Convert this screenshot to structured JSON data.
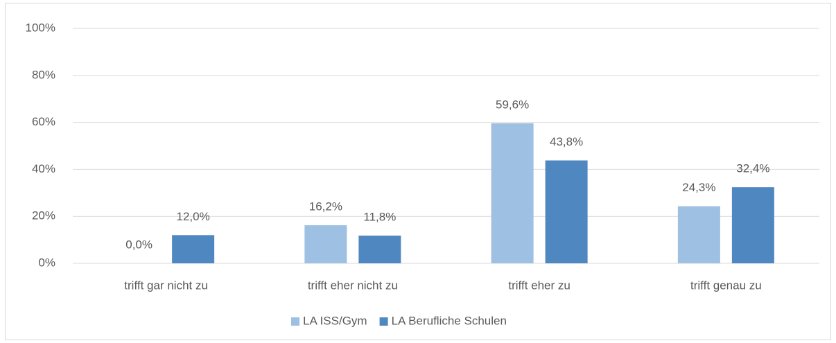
{
  "chart_data": {
    "type": "bar",
    "categories": [
      "trifft gar nicht zu",
      "trifft eher nicht zu",
      "trifft eher zu",
      "trifft genau zu"
    ],
    "series": [
      {
        "name": "LA ISS/Gym",
        "color": "#9dc0e3",
        "values": [
          0.0,
          16.2,
          59.6,
          24.3
        ],
        "value_labels": [
          "0,0%",
          "16,2%",
          "59,6%",
          "24,3%"
        ]
      },
      {
        "name": "LA Berufliche Schulen",
        "color": "#4f88c0",
        "values": [
          12.0,
          11.8,
          43.8,
          32.4
        ],
        "value_labels": [
          "12,0%",
          "11,8%",
          "43,8%",
          "32,4%"
        ]
      }
    ],
    "ylim": [
      0,
      100
    ],
    "yticks": [
      {
        "value": 0,
        "label": "0%"
      },
      {
        "value": 20,
        "label": "20%"
      },
      {
        "value": 40,
        "label": "40%"
      },
      {
        "value": 60,
        "label": "60%"
      },
      {
        "value": 80,
        "label": "80%"
      },
      {
        "value": 100,
        "label": "100%"
      }
    ],
    "grid": true,
    "legend": "bottom"
  }
}
